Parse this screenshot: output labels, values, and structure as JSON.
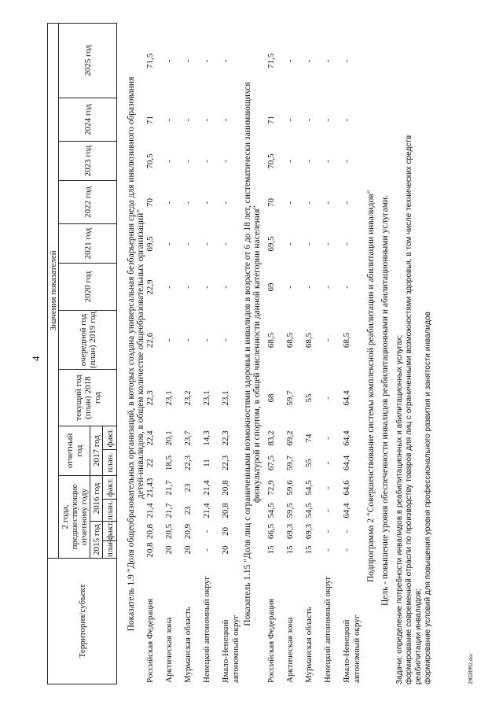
{
  "page_number": "4",
  "header": {
    "territory_label": "Территория/субъект",
    "values_label": "Значения показателей",
    "prev_years_label": "2 года, предшествующие отчетному году",
    "report_year_label": "отчетный год",
    "years": [
      "2015 год",
      "2016 год",
      "2017 год"
    ],
    "plan": "план.",
    "fact": "факт.",
    "current_year": "текущий год (план) 2018 год",
    "next_year": "очередной год (план) 2019 год",
    "future_years": [
      "2020 год",
      "2021 год",
      "2022 год",
      "2023 год",
      "2024 год",
      "2025 год"
    ]
  },
  "indicators": [
    {
      "title_lines": [
        "Показатель 1.9 \"Доля общеобразовательных организаций, в которых создана универсальная безбарьерная среда для инклюзивного образования",
        "детей-инвалидов, в общем количестве общеобразовательных организаций\""
      ],
      "rows": [
        {
          "territory": [
            "Российская Федерация"
          ],
          "values": [
            "20,8",
            "20,8",
            "21,4",
            "21,43",
            "22",
            "22,4",
            "22,3",
            "22,6",
            "22,9",
            "69,5",
            "70",
            "70,5",
            "71",
            "71,5"
          ]
        },
        {
          "territory": [
            "Арктическая зона"
          ],
          "values": [
            "20",
            "20,5",
            "21,7",
            "21,7",
            "18,5",
            "20,1",
            "23,1",
            "-",
            "-",
            "-",
            "-",
            "-",
            "-",
            "-"
          ]
        },
        {
          "territory": [
            "Мурманская область"
          ],
          "values": [
            "20",
            "20,9",
            "23",
            "23",
            "22,3",
            "23,7",
            "23,2",
            "-",
            "-",
            "-",
            "-",
            "-",
            "-",
            "-"
          ]
        },
        {
          "territory": [
            "Ненецкий автономный округ"
          ],
          "values": [
            "-",
            "-",
            "21,4",
            "21,4",
            "11",
            "14,3",
            "23,1",
            "-",
            "-",
            "-",
            "-",
            "-",
            "-",
            "-"
          ]
        },
        {
          "territory": [
            "Ямало-Ненецкий",
            "автономный округ"
          ],
          "values": [
            "20",
            "20",
            "20,8",
            "20,8",
            "22,3",
            "22,3",
            "23,1",
            "-",
            "-",
            "-",
            "-",
            "-",
            "-",
            "-"
          ]
        }
      ]
    },
    {
      "title_lines": [
        "Показатель 1.15 \"Доля лиц с ограниченными возможностями здоровья и инвалидов в возрасте от 6 до 18 лет, систематически занимающихся",
        "физкультурой и спортом, в общей численности данной категории населения\""
      ],
      "rows": [
        {
          "territory": [
            "Российская Федерация"
          ],
          "values": [
            "15",
            "66,5",
            "54,5",
            "72,9",
            "67,5",
            "83,2",
            "68",
            "68,5",
            "69",
            "69,5",
            "70",
            "70,5",
            "71",
            "71,5"
          ]
        },
        {
          "territory": [
            "Арктическая зона"
          ],
          "values": [
            "15",
            "69,3",
            "59,5",
            "59,6",
            "59,7",
            "69,2",
            "59,7",
            "68,5",
            "-",
            "-",
            "-",
            "-",
            "-",
            "-"
          ]
        },
        {
          "territory": [
            "Мурманская область"
          ],
          "values": [
            "15",
            "69,3",
            "54,5",
            "54,5",
            "55",
            "74",
            "55",
            "68,5",
            "-",
            "-",
            "-",
            "-",
            "-",
            "-"
          ]
        },
        {
          "territory": [
            "Ненецкий автономный округ"
          ],
          "values": [
            "-",
            "-",
            "-",
            "-",
            "-",
            "-",
            "-",
            "-",
            "-",
            "-",
            "-",
            "-",
            "-",
            "-"
          ]
        },
        {
          "territory": [
            "Ямало-Ненецкий",
            "автономный округ"
          ],
          "values": [
            "-",
            "-",
            "64,4",
            "64,6",
            "64,4",
            "64,4",
            "64,4",
            "68,5",
            "-",
            "-",
            "-",
            "-",
            "-",
            "-"
          ]
        }
      ]
    }
  ],
  "subprogram": {
    "title": "Подпрограмма 2 \"Совершенствование системы комплексной реабилитации и абилитации инвалидов\"",
    "goal": "Цель - повышение уровня обеспеченности инвалидов  реабилитационными и абилитационными услугами.",
    "tasks_lines": [
      "Задачи: определение потребности инвалидов в реабилитационных и абилитационных услугах;",
      "формирование современной отрасли по производству товаров для лиц с ограниченными возможностями здоровья, в том числе технических средств",
      "реабилитации инвалидов;",
      "формирование условий для повышения уровня профессионального развития и занятости инвалидов"
    ]
  },
  "footer_filename": "29020992.doc"
}
